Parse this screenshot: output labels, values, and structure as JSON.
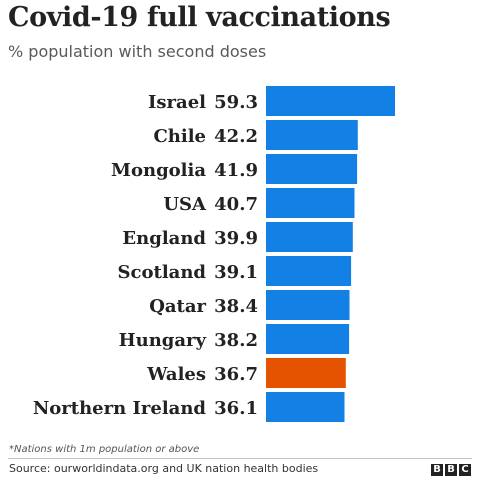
{
  "header": {
    "title": "Covid-19 full vaccinations",
    "subtitle": "% population with second doses"
  },
  "chart_data": {
    "type": "bar",
    "orientation": "horizontal",
    "title": "Covid-19 full vaccinations",
    "subtitle": "% population with second doses",
    "categories": [
      "Israel",
      "Chile",
      "Mongolia",
      "USA",
      "England",
      "Scotland",
      "Qatar",
      "Hungary",
      "Wales",
      "Northern Ireland"
    ],
    "values": [
      59.3,
      42.2,
      41.9,
      40.7,
      39.9,
      39.1,
      38.4,
      38.2,
      36.7,
      36.1
    ],
    "data_labels": [
      "59.3",
      "42.2",
      "41.9",
      "40.7",
      "39.9",
      "39.1",
      "38.4",
      "38.2",
      "36.7",
      "36.1"
    ],
    "xlim": [
      0,
      59.3
    ],
    "grid": false,
    "axes_visible": false,
    "highlight_category": "Wales",
    "colors": {
      "bar": "#1380e6",
      "highlight": "#e65300"
    }
  },
  "footer": {
    "note": "*Nations with 1m population or above",
    "source": "Source: ourworldindata.org and UK nation health bodies",
    "logo_letters": [
      "B",
      "B",
      "C"
    ]
  }
}
